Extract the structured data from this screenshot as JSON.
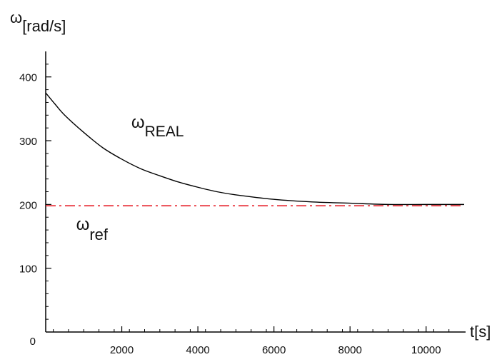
{
  "chart_data": {
    "type": "line",
    "title": "",
    "ylabel": {
      "main": "ω",
      "sub": "[rad/s]"
    },
    "xlabel": "t[s]",
    "xlim": [
      0,
      11000
    ],
    "ylim": [
      0,
      440
    ],
    "x_ticks": [
      2000,
      4000,
      6000,
      8000,
      10000
    ],
    "x_tick_labels": [
      "2000",
      "4000",
      "6000",
      "8000",
      "10000"
    ],
    "y_ticks": [
      0,
      100,
      200,
      300,
      400
    ],
    "y_tick_labels": [
      "0",
      "100",
      "200",
      "300",
      "400"
    ],
    "grid": false,
    "series": [
      {
        "name": "ωREAL",
        "style": "solid",
        "color": "#000000",
        "x": [
          0,
          250,
          500,
          1000,
          1500,
          2000,
          2500,
          3000,
          3500,
          4000,
          4500,
          5000,
          6000,
          7000,
          8000,
          9000,
          10000,
          11000
        ],
        "y": [
          375,
          357,
          340,
          313,
          289,
          271,
          256,
          245,
          235,
          227,
          220,
          215,
          208,
          204,
          202,
          200,
          200,
          200
        ]
      },
      {
        "name": "ωref",
        "style": "dashed",
        "color": "#e8202a",
        "x": [
          0,
          11000
        ],
        "y": [
          198,
          198
        ]
      }
    ],
    "annotations": [
      {
        "main": "ω",
        "sub": "REAL",
        "x": 2250,
        "y": 320
      },
      {
        "main": "ω",
        "sub": "ref",
        "x": 800,
        "y": 160
      }
    ]
  }
}
